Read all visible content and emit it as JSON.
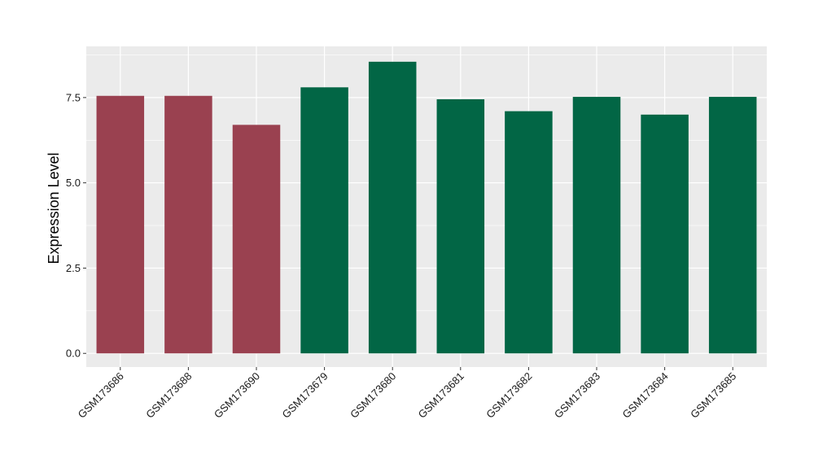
{
  "chart_data": {
    "type": "bar",
    "categories": [
      "GSM173686",
      "GSM173688",
      "GSM173690",
      "GSM173679",
      "GSM173680",
      "GSM173681",
      "GSM173682",
      "GSM173683",
      "GSM173684",
      "GSM173685"
    ],
    "values": [
      7.55,
      7.55,
      6.7,
      7.8,
      8.55,
      7.45,
      7.1,
      7.52,
      7.0,
      7.52
    ],
    "bar_colors": [
      "#9a4150",
      "#9a4150",
      "#9a4150",
      "#026645",
      "#026645",
      "#026645",
      "#026645",
      "#026645",
      "#026645",
      "#026645"
    ],
    "title": "",
    "xlabel": "",
    "ylabel": "Expression Level",
    "ylim": [
      -0.4,
      9.0
    ],
    "yticks": [
      0,
      2.5,
      5,
      7.5
    ],
    "ytick_labels": [
      "0.0",
      "2.5",
      "5.0",
      "7.5"
    ],
    "grid": true,
    "panel_background": "#ebebeb",
    "gridline_color": "#ffffff"
  }
}
